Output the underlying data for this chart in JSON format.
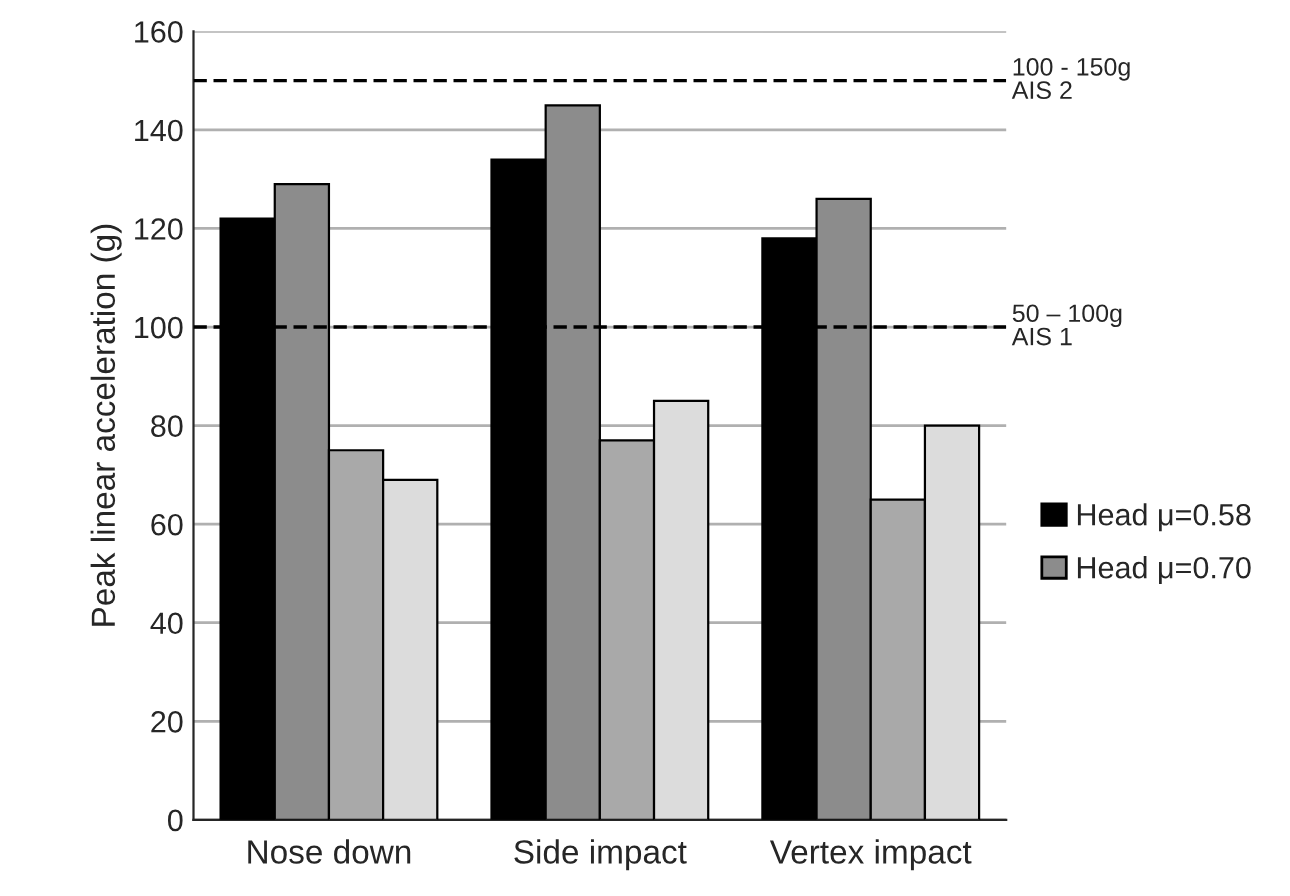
{
  "chart_data": {
    "type": "bar",
    "ylabel": "Peak linear acceleration (g)",
    "categories": [
      "Nose down",
      "Side impact",
      "Vertex impact"
    ],
    "series": [
      {
        "name": "Head μ=0.58",
        "color": "#000000",
        "values": [
          122,
          134,
          118
        ]
      },
      {
        "name": "Head μ=0.70",
        "color": "#8c8c8c",
        "values": [
          129,
          145,
          126
        ]
      },
      {
        "color": "#a9a9a9",
        "values": [
          75,
          77,
          65
        ]
      },
      {
        "color": "#dcdcdc",
        "values": [
          69,
          85,
          80
        ]
      }
    ],
    "ylim": [
      0,
      160
    ],
    "yticks": [
      0,
      20,
      40,
      60,
      80,
      100,
      120,
      140,
      160
    ],
    "grid": "y",
    "legend": "right",
    "ref_lines": [
      {
        "axis": "y",
        "value": 150,
        "label": "100 - 150g\nAIS 2",
        "line_style": "dashed",
        "color": "#000000"
      },
      {
        "axis": "y",
        "value": 100,
        "label": "50 – 100g\nAIS 1",
        "line_style": "dashed",
        "color": "#000000"
      }
    ]
  }
}
